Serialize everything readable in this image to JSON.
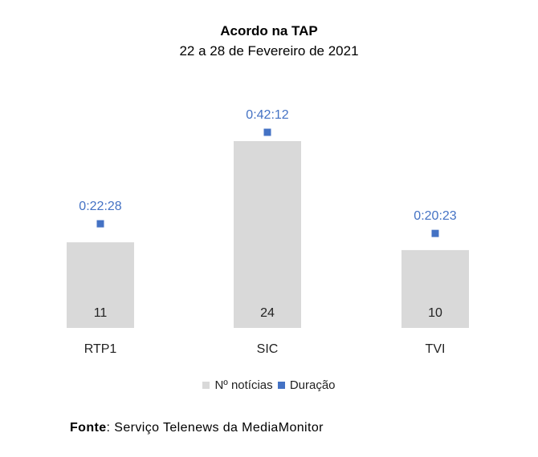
{
  "chart_data": {
    "type": "bar",
    "title": "Acordo na TAP",
    "subtitle": "22 a 28 de Fevereiro de 2021",
    "categories": [
      "RTP1",
      "SIC",
      "TVI"
    ],
    "series": [
      {
        "name": "Nº notícias",
        "type": "bar",
        "values": [
          11,
          24,
          10
        ],
        "color": "#d9d9d9",
        "data_labels": [
          "11",
          "24",
          "10"
        ]
      },
      {
        "name": "Duração",
        "type": "scatter",
        "values": [
          "0:22:28",
          "0:42:12",
          "0:20:23"
        ],
        "values_seconds": [
          1348,
          2532,
          1223
        ],
        "color": "#4472c4",
        "data_labels": [
          "0:22:28",
          "0:42:12",
          "0:20:23"
        ]
      }
    ],
    "legend_position": "bottom",
    "grid": false
  },
  "source": {
    "label": "Fonte",
    "separator": ":",
    "text": " Serviço Telenews da MediaMonitor"
  }
}
